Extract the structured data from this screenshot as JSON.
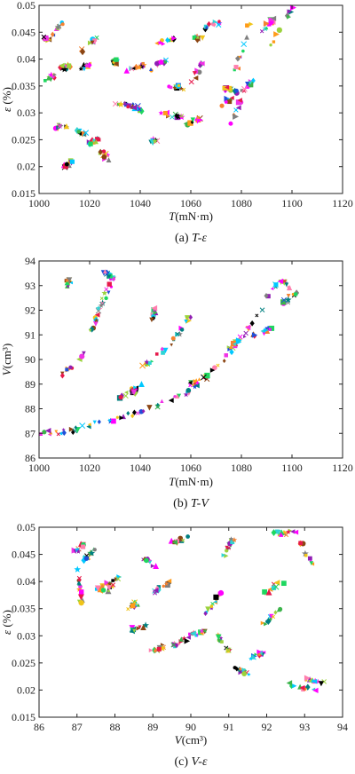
{
  "chart_data": [
    {
      "type": "scatter",
      "caption_prefix": "(a) ",
      "caption_math": "T-ε",
      "xlabel_symbol": "T",
      "xlabel_unit": "(mN·m)",
      "ylabel_symbol": "ε",
      "ylabel_unit": " (%)",
      "xlim": [
        1000,
        1120
      ],
      "ylim": [
        0.015,
        0.05
      ],
      "xticks": [
        "1000",
        "1020",
        "1040",
        "1060",
        "1080",
        "1100",
        "1120"
      ],
      "yticks": [
        "0.015",
        "0.02",
        "0.025",
        "0.03",
        "0.035",
        "0.04",
        "0.045",
        "0.05"
      ],
      "clusters": [
        [
          1002,
          0.044,
          1004,
          0.0436
        ],
        [
          1006,
          0.0445,
          1009,
          0.047
        ],
        [
          1008,
          0.0385,
          1012,
          0.0385
        ],
        [
          1003,
          0.036,
          1006,
          0.037
        ],
        [
          1017,
          0.0415,
          1023,
          0.044
        ],
        [
          1016,
          0.038,
          1020,
          0.039
        ],
        [
          1030,
          0.0395,
          1030,
          0.0395
        ],
        [
          1035,
          0.038,
          1042,
          0.039
        ],
        [
          1046,
          0.043,
          1054,
          0.0435
        ],
        [
          1044,
          0.038,
          1050,
          0.04
        ],
        [
          1052,
          0.035,
          1057,
          0.0345
        ],
        [
          1060,
          0.036,
          1065,
          0.0395
        ],
        [
          1062,
          0.044,
          1064,
          0.044
        ],
        [
          1066,
          0.046,
          1072,
          0.047
        ],
        [
          1078,
          0.038,
          1084,
          0.048
        ],
        [
          1088,
          0.045,
          1094,
          0.048
        ],
        [
          1091,
          0.042,
          1100,
          0.0495
        ],
        [
          1006,
          0.027,
          1012,
          0.028
        ],
        [
          1010,
          0.02,
          1013,
          0.021
        ],
        [
          1015,
          0.0265,
          1018,
          0.026
        ],
        [
          1020,
          0.0245,
          1024,
          0.025
        ],
        [
          1024,
          0.023,
          1027,
          0.0215
        ],
        [
          1030,
          0.032,
          1037,
          0.031
        ],
        [
          1037,
          0.032,
          1040,
          0.03
        ],
        [
          1044,
          0.025,
          1047,
          0.0245
        ],
        [
          1048,
          0.03,
          1057,
          0.029
        ],
        [
          1058,
          0.028,
          1065,
          0.029
        ],
        [
          1072,
          0.031,
          1076,
          0.033
        ],
        [
          1076,
          0.028,
          1080,
          0.033
        ],
        [
          1080,
          0.034,
          1084,
          0.036
        ],
        [
          1074,
          0.0345,
          1078,
          0.034
        ]
      ]
    },
    {
      "type": "scatter",
      "caption_prefix": "(b) ",
      "caption_math": "T-V",
      "xlabel_symbol": "T",
      "xlabel_unit": "(mN·m)",
      "ylabel_symbol": "V",
      "ylabel_unit": "(cm³)",
      "xlim": [
        1000,
        1120
      ],
      "ylim": [
        86,
        94
      ],
      "xticks": [
        "1000",
        "1020",
        "1040",
        "1060",
        "1080",
        "1100",
        "1120"
      ],
      "yticks": [
        "86",
        "87",
        "88",
        "89",
        "90",
        "91",
        "92",
        "93",
        "94"
      ],
      "clusters": [
        [
          1001,
          87.0,
          1012,
          87.1
        ],
        [
          1012,
          87.1,
          1030,
          87.6
        ],
        [
          1030,
          87.6,
          1042,
          87.9
        ],
        [
          1042,
          87.9,
          1058,
          88.6
        ],
        [
          1058,
          88.6,
          1070,
          89.6
        ],
        [
          1070,
          89.6,
          1082,
          91.2
        ],
        [
          1082,
          91.2,
          1095,
          93.3
        ],
        [
          1095,
          93.3,
          1102,
          92.5
        ],
        [
          1008,
          89.2,
          1018,
          90.2
        ],
        [
          1020,
          91.0,
          1024,
          92.0
        ],
        [
          1024,
          92.0,
          1028,
          93.1
        ],
        [
          1026,
          93.5,
          1030,
          93.2
        ],
        [
          1011,
          93.3,
          1012,
          93.0
        ],
        [
          1030,
          88.3,
          1040,
          89.0
        ],
        [
          1040,
          89.6,
          1052,
          90.6
        ],
        [
          1052,
          90.6,
          1060,
          91.8
        ],
        [
          1060,
          89.0,
          1068,
          89.4
        ],
        [
          1075,
          90.5,
          1080,
          90.8
        ],
        [
          1085,
          91.0,
          1092,
          91.2
        ],
        [
          1097,
          92.3,
          1102,
          92.8
        ],
        [
          1045,
          91.6,
          1046,
          92.1
        ],
        [
          1037,
          88.7,
          1038,
          88.8
        ]
      ]
    },
    {
      "type": "scatter",
      "caption_prefix": "(c) ",
      "caption_math": "V-ε",
      "xlabel_symbol": "V",
      "xlabel_unit": "(cm³)",
      "ylabel_symbol": "ε",
      "ylabel_unit": " (%)",
      "xlim": [
        86,
        94
      ],
      "ylim": [
        0.015,
        0.05
      ],
      "xticks": [
        "86",
        "87",
        "88",
        "89",
        "90",
        "91",
        "92",
        "93",
        "94"
      ],
      "yticks": [
        "0.015",
        "0.02",
        "0.025",
        "0.03",
        "0.035",
        "0.04",
        "0.045",
        "0.05"
      ],
      "clusters": [
        [
          87.0,
          0.044,
          87.1,
          0.036
        ],
        [
          87.2,
          0.044,
          87.5,
          0.046
        ],
        [
          87.5,
          0.038,
          87.9,
          0.04
        ],
        [
          87.8,
          0.038,
          88.2,
          0.042
        ],
        [
          88.3,
          0.035,
          88.6,
          0.036
        ],
        [
          88.4,
          0.031,
          88.8,
          0.032
        ],
        [
          88.8,
          0.044,
          89.1,
          0.043
        ],
        [
          89.0,
          0.038,
          89.4,
          0.04
        ],
        [
          89.5,
          0.047,
          89.9,
          0.048
        ],
        [
          89.5,
          0.028,
          90.0,
          0.03
        ],
        [
          90.0,
          0.03,
          90.4,
          0.031
        ],
        [
          90.4,
          0.034,
          90.8,
          0.038
        ],
        [
          90.8,
          0.043,
          91.1,
          0.048
        ],
        [
          91.1,
          0.024,
          91.6,
          0.023
        ],
        [
          91.6,
          0.026,
          91.9,
          0.027
        ],
        [
          92.0,
          0.038,
          92.4,
          0.04
        ],
        [
          92.2,
          0.049,
          92.8,
          0.049
        ],
        [
          92.9,
          0.047,
          93.2,
          0.043
        ],
        [
          92.5,
          0.021,
          93.3,
          0.02
        ],
        [
          91.9,
          0.032,
          92.4,
          0.035
        ],
        [
          93.0,
          0.022,
          93.5,
          0.0215
        ],
        [
          89.0,
          0.027,
          89.3,
          0.028
        ],
        [
          90.7,
          0.03,
          91.0,
          0.027
        ],
        [
          86.9,
          0.045,
          87.2,
          0.047
        ]
      ]
    }
  ],
  "palette": [
    "#e6194b",
    "#3cb44b",
    "#f0c419",
    "#1f4fd8",
    "#f58231",
    "#911eb4",
    "#2fd4d4",
    "#f032e6",
    "#9bd23c",
    "#ff7fae",
    "#008080",
    "#000000",
    "#8b4513",
    "#ff00ff",
    "#00c8ff",
    "#ff9b1a",
    "#7f7f7f",
    "#1ed760"
  ]
}
